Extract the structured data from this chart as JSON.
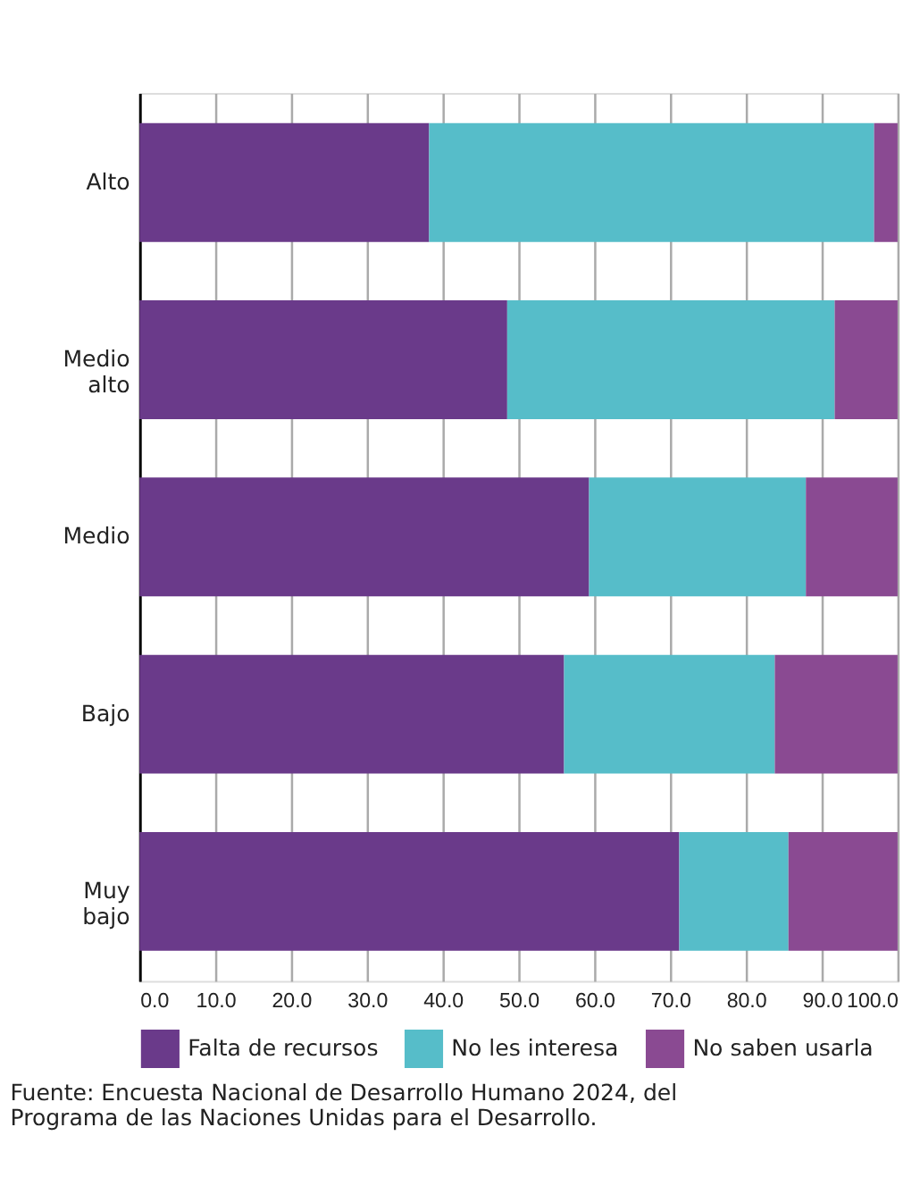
{
  "chart_data": {
    "type": "bar",
    "orientation": "horizontal",
    "stacked": true,
    "categories": [
      "Alto",
      "Medio alto",
      "Medio",
      "Bajo",
      "Muy bajo"
    ],
    "series": [
      {
        "name": "Falta de recursos",
        "color": "#6a3a8a",
        "values": [
          38.2,
          48.5,
          59.3,
          56.0,
          71.2
        ]
      },
      {
        "name": "No les interesa",
        "color": "#56bdc9",
        "values": [
          58.7,
          43.2,
          28.6,
          27.8,
          14.4
        ]
      },
      {
        "name": "No saben usarla",
        "color": "#8a4a92",
        "values": [
          3.1,
          8.3,
          12.1,
          16.2,
          14.4
        ]
      }
    ],
    "xlim": [
      0,
      100
    ],
    "xticks": [
      {
        "value": 0,
        "label": "0.0"
      },
      {
        "value": 10,
        "label": "10.0"
      },
      {
        "value": 20,
        "label": "20.0"
      },
      {
        "value": 30,
        "label": "30.0"
      },
      {
        "value": 40,
        "label": "40.0"
      },
      {
        "value": 50,
        "label": "50.0"
      },
      {
        "value": 60,
        "label": "60.0"
      },
      {
        "value": 70,
        "label": "70.0"
      },
      {
        "value": 80,
        "label": "80.0"
      },
      {
        "value": 90,
        "label": "90.0"
      },
      {
        "value": 100,
        "label": "100.0"
      }
    ],
    "grid": "x",
    "legend": "bottom",
    "annotations": [
      "Fuente: Encuesta Nacional de Desarrollo Humano 2024, del Programa de las Naciones Unidas para el Desarrollo."
    ]
  }
}
